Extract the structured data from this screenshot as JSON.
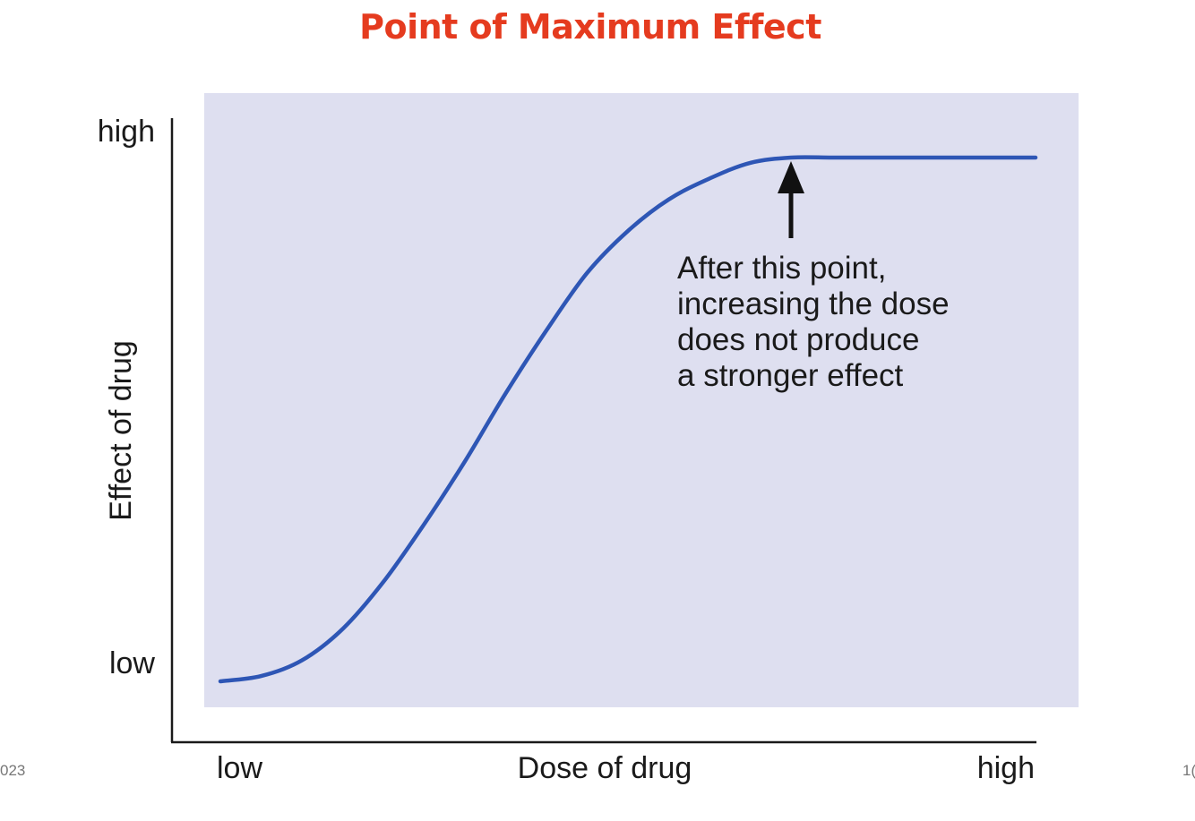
{
  "slide": {
    "title": "Point of Maximum Effect",
    "footer_left": "023",
    "footer_right": "1("
  },
  "chart_data": {
    "type": "line",
    "title": "Point of Maximum Effect",
    "xlabel": "Dose of drug",
    "ylabel": "Effect of drug",
    "x_tick_labels": [
      "low",
      "high"
    ],
    "y_tick_labels": [
      "low",
      "high"
    ],
    "xlim": [
      0,
      1
    ],
    "ylim": [
      0,
      1
    ],
    "grid": false,
    "plot_background": "#dedff0",
    "series_color": "#2e56b5",
    "series": [
      {
        "x": [
          0.0,
          0.05,
          0.1,
          0.15,
          0.2,
          0.25,
          0.3,
          0.35,
          0.4,
          0.45,
          0.5,
          0.55,
          0.6,
          0.65,
          0.7,
          0.75,
          0.8,
          0.85,
          0.9,
          0.95,
          1.0
        ],
        "y": [
          0.0,
          0.01,
          0.04,
          0.1,
          0.19,
          0.3,
          0.42,
          0.55,
          0.67,
          0.78,
          0.86,
          0.92,
          0.96,
          0.99,
          1.0,
          1.0,
          1.0,
          1.0,
          1.0,
          1.0,
          1.0
        ]
      }
    ],
    "annotation": {
      "x": 0.7,
      "y": 1.0,
      "lines": [
        "After this point,",
        "increasing the dose",
        "does not produce",
        "a stronger effect"
      ]
    }
  }
}
